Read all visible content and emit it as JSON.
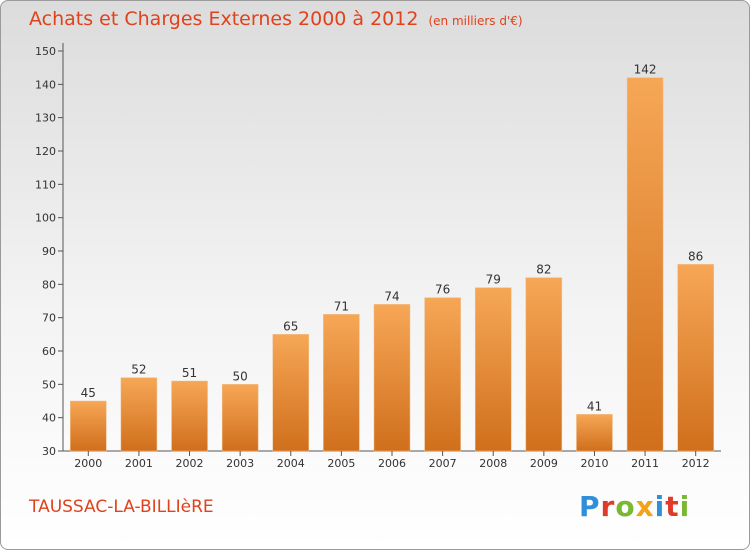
{
  "header": {
    "title": "Achats et Charges Externes 2000 à 2012",
    "unit": "(en milliers d'€)"
  },
  "footer": {
    "place": "TAUSSAC-LA-BILLIèRE",
    "logo": "Proxiti"
  },
  "colors": {
    "bar_light": "#f6a756",
    "bar_dark": "#d06f1c",
    "title": "#e0421b"
  },
  "chart_data": {
    "type": "bar",
    "title": "Achats et Charges Externes 2000 à 2012",
    "subtitle": "(en milliers d'€)",
    "xlabel": "",
    "ylabel": "",
    "categories": [
      "2000",
      "2001",
      "2002",
      "2003",
      "2004",
      "2005",
      "2006",
      "2007",
      "2008",
      "2009",
      "2010",
      "2011",
      "2012"
    ],
    "values": [
      45,
      52,
      51,
      50,
      65,
      71,
      74,
      76,
      79,
      82,
      41,
      142,
      86
    ],
    "ylim": [
      30,
      150
    ],
    "yticks": [
      30,
      40,
      50,
      60,
      70,
      80,
      90,
      100,
      110,
      120,
      130,
      140,
      150
    ],
    "grid": false,
    "legend": "none"
  }
}
